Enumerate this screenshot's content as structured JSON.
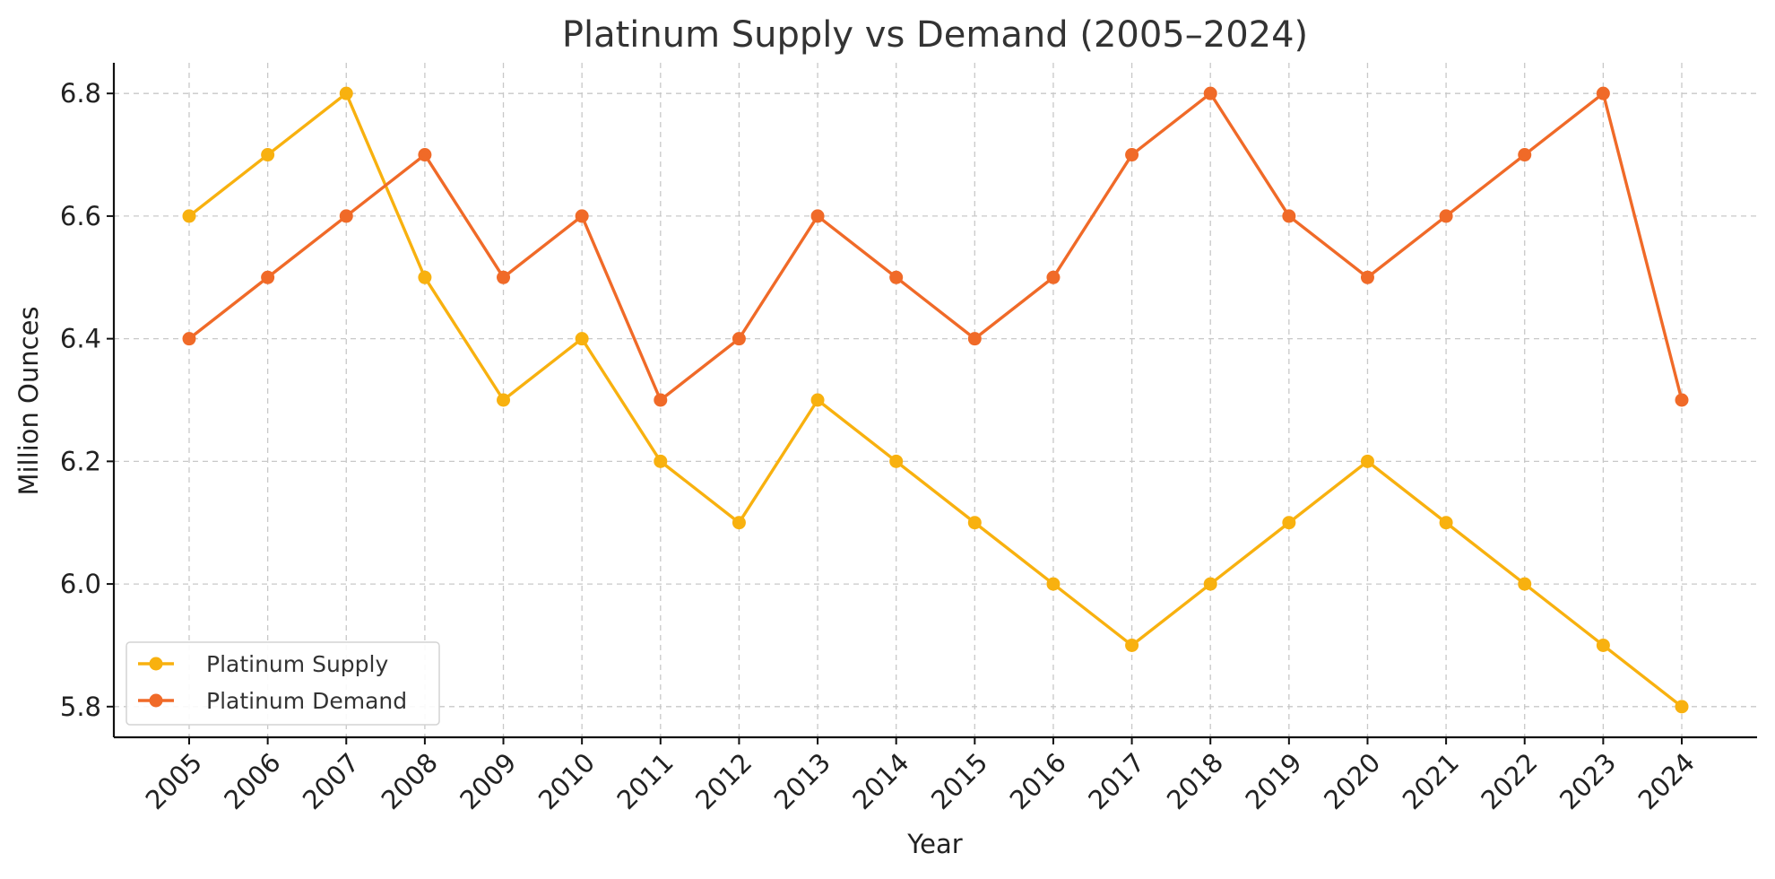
{
  "chart_data": {
    "type": "line",
    "title": "Platinum Supply vs Demand (2005–2024)",
    "xlabel": "Year",
    "ylabel": "Million Ounces",
    "x": [
      "2005",
      "2006",
      "2007",
      "2008",
      "2009",
      "2010",
      "2011",
      "2012",
      "2013",
      "2014",
      "2015",
      "2016",
      "2017",
      "2018",
      "2019",
      "2020",
      "2021",
      "2022",
      "2023",
      "2024"
    ],
    "ylim": [
      5.75,
      6.85
    ],
    "yticks": [
      "5.8",
      "6.0",
      "6.2",
      "6.4",
      "6.6",
      "6.8"
    ],
    "grid": true,
    "legend_position": "lower-left",
    "series": [
      {
        "name": "Platinum Supply",
        "color": "#f8b10f",
        "values": [
          6.6,
          6.7,
          6.8,
          6.5,
          6.3,
          6.4,
          6.2,
          6.1,
          6.3,
          6.2,
          6.1,
          6.0,
          5.9,
          6.0,
          6.1,
          6.2,
          6.1,
          6.0,
          5.9,
          5.8
        ]
      },
      {
        "name": "Platinum Demand",
        "color": "#f06a28",
        "values": [
          6.4,
          6.5,
          6.6,
          6.7,
          6.5,
          6.6,
          6.3,
          6.4,
          6.6,
          6.5,
          6.4,
          6.5,
          6.7,
          6.8,
          6.6,
          6.5,
          6.6,
          6.7,
          6.8,
          6.3
        ]
      }
    ]
  }
}
